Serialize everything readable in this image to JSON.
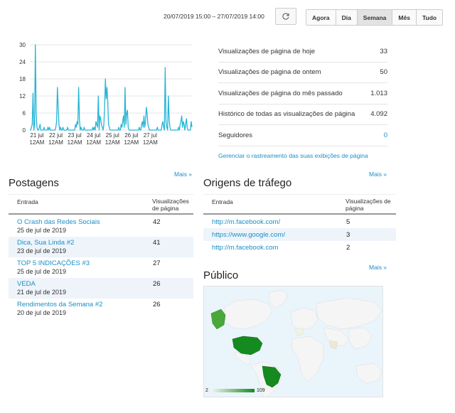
{
  "toolbar": {
    "date_range": "20/07/2019 15:00 – 27/07/2019 14:00",
    "ranges": [
      {
        "label": "Agora",
        "active": false
      },
      {
        "label": "Dia",
        "active": false
      },
      {
        "label": "Semana",
        "active": true
      },
      {
        "label": "Mês",
        "active": false
      },
      {
        "label": "Tudo",
        "active": false
      }
    ],
    "refresh_icon": "refresh-icon"
  },
  "chart_data": {
    "type": "line",
    "title": "",
    "xlabel": "",
    "ylabel": "",
    "ylim": [
      0,
      30
    ],
    "yticks": [
      "0",
      "6",
      "12",
      "18",
      "24",
      "30"
    ],
    "xtick_labels": [
      [
        "21 jul",
        "12AM"
      ],
      [
        "22 jul",
        "12AM"
      ],
      [
        "23 jul",
        "12AM"
      ],
      [
        "24 jul",
        "12AM"
      ],
      [
        "25 jul",
        "12AM"
      ],
      [
        "26 jul",
        "12AM"
      ],
      [
        "27 jul",
        "12AM"
      ]
    ],
    "grid": true,
    "line_color": "#26b5d6",
    "hours_per_point": 1,
    "series": [
      {
        "values": [
          0,
          0,
          1,
          2,
          13,
          0,
          2,
          30,
          6,
          1,
          0,
          0,
          1,
          2,
          0,
          0,
          0,
          0,
          1,
          0,
          0,
          0,
          0,
          1,
          0,
          1,
          0,
          0,
          0,
          0,
          0,
          0,
          0,
          1,
          3,
          15,
          8,
          2,
          0,
          1,
          0,
          0,
          1,
          0,
          0,
          0,
          0,
          0,
          1,
          0,
          0,
          0,
          0,
          0,
          0,
          0,
          0,
          0,
          2,
          1,
          3,
          2,
          15,
          4,
          0,
          1,
          0,
          0,
          0,
          1,
          0,
          0,
          0,
          0,
          0,
          0,
          0,
          0,
          0,
          0,
          1,
          0,
          1,
          0,
          3,
          2,
          1,
          12,
          0,
          5,
          4,
          2,
          1,
          0,
          2,
          8,
          18,
          11,
          15,
          10,
          2,
          1,
          0,
          0,
          0,
          0,
          0,
          0,
          0,
          0,
          0,
          0,
          0,
          1,
          0,
          0,
          2,
          1,
          3,
          5,
          1,
          15,
          2,
          6,
          7,
          1,
          0,
          0,
          0,
          0,
          0,
          0,
          0,
          0,
          0,
          0,
          0,
          0,
          0,
          1,
          0,
          0,
          2,
          3,
          1,
          5,
          1,
          3,
          8,
          6,
          2,
          1,
          0,
          0,
          0,
          0,
          0,
          0,
          0,
          0,
          0,
          0,
          1,
          0,
          0,
          0,
          0,
          0,
          2,
          3,
          1,
          0,
          22,
          3,
          1,
          0,
          12,
          4,
          1,
          0,
          0,
          0,
          0,
          0,
          0,
          0,
          0,
          0,
          0,
          1,
          0,
          2,
          3,
          5,
          1,
          3,
          2,
          0,
          2,
          4,
          1,
          0,
          0,
          0,
          0,
          3,
          1
        ]
      }
    ]
  },
  "stats": [
    {
      "label": "Visualizações de página de hoje",
      "value": "33",
      "link": false
    },
    {
      "label": "Visualizações de página de ontem",
      "value": "50",
      "link": false
    },
    {
      "label": "Visualizações de página do mês passado",
      "value": "1.013",
      "link": false
    },
    {
      "label": "Histórico de todas as visualizações de página",
      "value": "4.092",
      "link": false
    },
    {
      "label": "Seguidores",
      "value": "0",
      "link": true
    }
  ],
  "manage_link": "Gerenciar o rastreamento das suas exibições de página",
  "posts": {
    "title": "Postagens",
    "more": "Mais »",
    "col_entry": "Entrada",
    "col_views": "Visualizações de página",
    "rows": [
      {
        "title": "O Crash das Redes Sociais",
        "date": "25 de jul de 2019",
        "views": "42"
      },
      {
        "title": "Dica, Sua Linda #2",
        "date": "23 de jul de 2019",
        "views": "41"
      },
      {
        "title": "TOP 5 INDICAÇÕES #3",
        "date": "25 de jul de 2019",
        "views": "27"
      },
      {
        "title": "VEDA",
        "date": "21 de jul de 2019",
        "views": "26"
      },
      {
        "title": "Rendimentos da Semana #2",
        "date": "20 de jul de 2019",
        "views": "26"
      }
    ]
  },
  "traffic": {
    "title": "Origens de tráfego",
    "more": "Mais »",
    "col_entry": "Entrada",
    "col_views": "Visualizações de página",
    "rows": [
      {
        "source": "http://m.facebook.com/",
        "views": "5"
      },
      {
        "source": "https://www.google.com/",
        "views": "3"
      },
      {
        "source": "http://m.facebook.com",
        "views": "2"
      }
    ]
  },
  "audience": {
    "title": "Público",
    "more": "Mais »",
    "legend_min": "2",
    "legend_max": "109",
    "colors": {
      "low": "#f0f5e8",
      "mid": "#4aa83a",
      "high": "#158a1f",
      "ocean": "#eaf4fb",
      "land": "#f5f5f5"
    }
  }
}
